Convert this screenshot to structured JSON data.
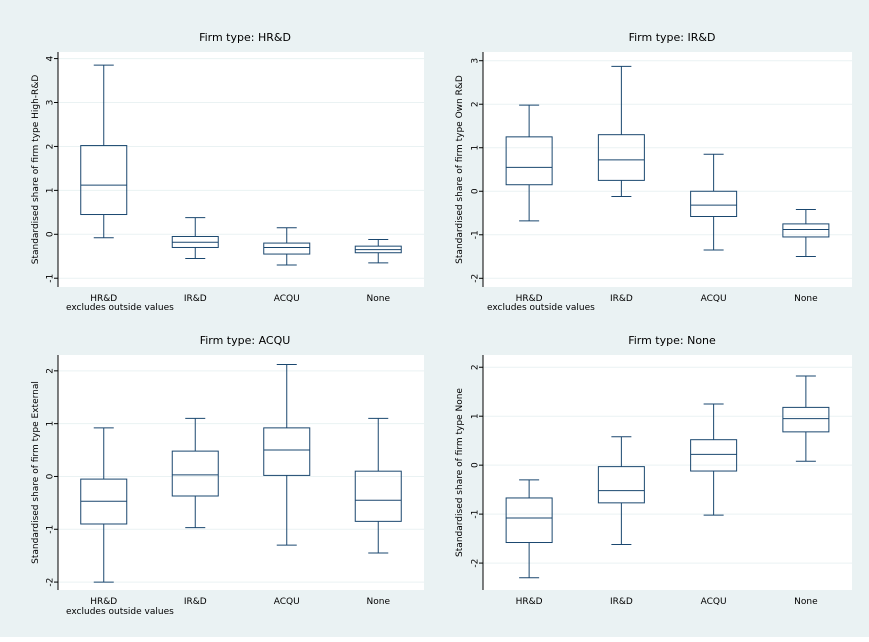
{
  "figure": {
    "background": "#eaf2f3",
    "plot_background": "#ffffff",
    "box_color": "#1a476f",
    "grid_color": "#eaf2f3",
    "text_color": "#000000",
    "note_text": "excludes outside values"
  },
  "chart_data": [
    {
      "type": "box",
      "title": "Firm type: HR&D",
      "ylabel": "Standardised share of firm type High-R&D",
      "categories": [
        "HR&D",
        "IR&D",
        "ACQU",
        "None"
      ],
      "ylim": [
        -1.2,
        4.15
      ],
      "yticks": [
        -1,
        0,
        1,
        2,
        3,
        4
      ],
      "ytick_labels": [
        "-1",
        "0",
        "1",
        "2",
        "3",
        "4"
      ],
      "grid": true,
      "note": "excludes outside values",
      "boxes": [
        {
          "category": "HR&D",
          "whisker_low": -0.08,
          "q1": 0.45,
          "median": 1.12,
          "q3": 2.02,
          "whisker_high": 3.85
        },
        {
          "category": "IR&D",
          "whisker_low": -0.55,
          "q1": -0.3,
          "median": -0.18,
          "q3": -0.05,
          "whisker_high": 0.38
        },
        {
          "category": "ACQU",
          "whisker_low": -0.7,
          "q1": -0.45,
          "median": -0.3,
          "q3": -0.2,
          "whisker_high": 0.15
        },
        {
          "category": "None",
          "whisker_low": -0.65,
          "q1": -0.42,
          "median": -0.35,
          "q3": -0.27,
          "whisker_high": -0.12
        }
      ]
    },
    {
      "type": "box",
      "title": "Firm type: IR&D",
      "ylabel": "Standardised share of firm type Own R&D",
      "categories": [
        "HR&D",
        "IR&D",
        "ACQU",
        "None"
      ],
      "ylim": [
        -2.2,
        3.2
      ],
      "yticks": [
        -2,
        -1,
        0,
        1,
        2,
        3
      ],
      "ytick_labels": [
        "-2",
        "-1",
        "0",
        "1",
        "2",
        "3"
      ],
      "grid": true,
      "note": "excludes outside values",
      "boxes": [
        {
          "category": "HR&D",
          "whisker_low": -0.68,
          "q1": 0.15,
          "median": 0.55,
          "q3": 1.25,
          "whisker_high": 1.98
        },
        {
          "category": "IR&D",
          "whisker_low": -0.12,
          "q1": 0.25,
          "median": 0.72,
          "q3": 1.3,
          "whisker_high": 2.87
        },
        {
          "category": "ACQU",
          "whisker_low": -1.35,
          "q1": -0.58,
          "median": -0.32,
          "q3": 0.0,
          "whisker_high": 0.85
        },
        {
          "category": "None",
          "whisker_low": -1.5,
          "q1": -1.05,
          "median": -0.88,
          "q3": -0.75,
          "whisker_high": -0.42
        }
      ]
    },
    {
      "type": "box",
      "title": "Firm type: ACQU",
      "ylabel": "Standardised share of firm type External",
      "categories": [
        "HR&D",
        "IR&D",
        "ACQU",
        "None"
      ],
      "ylim": [
        -2.15,
        2.3
      ],
      "yticks": [
        -2,
        -1,
        0,
        1,
        2
      ],
      "ytick_labels": [
        "-2",
        "-1",
        "0",
        "1",
        "2"
      ],
      "grid": true,
      "note": "excludes outside values",
      "boxes": [
        {
          "category": "HR&D",
          "whisker_low": -2.0,
          "q1": -0.9,
          "median": -0.47,
          "q3": -0.05,
          "whisker_high": 0.92
        },
        {
          "category": "IR&D",
          "whisker_low": -0.97,
          "q1": -0.37,
          "median": 0.03,
          "q3": 0.48,
          "whisker_high": 1.1
        },
        {
          "category": "ACQU",
          "whisker_low": -1.3,
          "q1": 0.02,
          "median": 0.5,
          "q3": 0.92,
          "whisker_high": 2.12
        },
        {
          "category": "None",
          "whisker_low": -1.45,
          "q1": -0.85,
          "median": -0.45,
          "q3": 0.1,
          "whisker_high": 1.1
        }
      ]
    },
    {
      "type": "box",
      "title": "Firm type: None",
      "ylabel": "Standardised share of firm type None",
      "categories": [
        "HR&D",
        "IR&D",
        "ACQU",
        "None"
      ],
      "ylim": [
        -2.55,
        2.25
      ],
      "yticks": [
        -2,
        -1,
        0,
        1,
        2
      ],
      "ytick_labels": [
        "-2",
        "-1",
        "0",
        "1",
        "2"
      ],
      "grid": true,
      "note": "",
      "boxes": [
        {
          "category": "HR&D",
          "whisker_low": -2.3,
          "q1": -1.58,
          "median": -1.08,
          "q3": -0.67,
          "whisker_high": -0.3
        },
        {
          "category": "IR&D",
          "whisker_low": -1.62,
          "q1": -0.77,
          "median": -0.52,
          "q3": -0.03,
          "whisker_high": 0.58
        },
        {
          "category": "ACQU",
          "whisker_low": -1.02,
          "q1": -0.12,
          "median": 0.22,
          "q3": 0.52,
          "whisker_high": 1.25
        },
        {
          "category": "None",
          "whisker_low": 0.08,
          "q1": 0.68,
          "median": 0.95,
          "q3": 1.18,
          "whisker_high": 1.82
        }
      ]
    }
  ]
}
